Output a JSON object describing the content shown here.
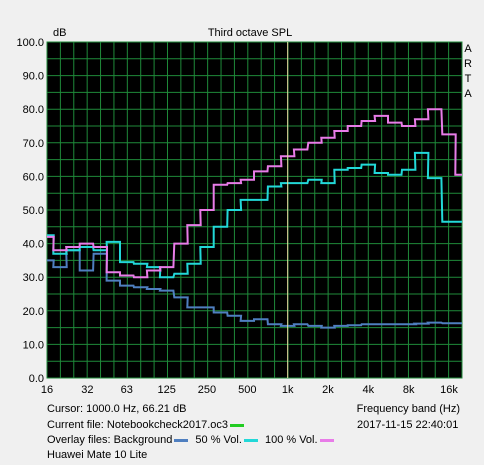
{
  "chart_data": {
    "type": "line",
    "title": "Third octave SPL",
    "ylabel": "dB",
    "xlabel": "Frequency band (Hz)",
    "side_label": [
      "A",
      "R",
      "T",
      "A"
    ],
    "x_scale": "log",
    "xlim": [
      16,
      20000
    ],
    "ylim": [
      0,
      100
    ],
    "y_ticks": [
      "0.0",
      "10.0",
      "20.0",
      "30.0",
      "40.0",
      "50.0",
      "60.0",
      "70.0",
      "80.0",
      "90.0",
      "100.0"
    ],
    "x_ticks": [
      {
        "value": 16,
        "label": "16"
      },
      {
        "value": 32,
        "label": "32"
      },
      {
        "value": 63,
        "label": "63"
      },
      {
        "value": 125,
        "label": "125"
      },
      {
        "value": 250,
        "label": "250"
      },
      {
        "value": 500,
        "label": "500"
      },
      {
        "value": 1000,
        "label": "1k"
      },
      {
        "value": 2000,
        "label": "2k"
      },
      {
        "value": 4000,
        "label": "4k"
      },
      {
        "value": 8000,
        "label": "8k"
      },
      {
        "value": 16000,
        "label": "16k"
      }
    ],
    "cursor_frequency": 1000,
    "grid": true,
    "band_centers": [
      16,
      20,
      25,
      31.5,
      40,
      50,
      63,
      80,
      100,
      125,
      160,
      200,
      250,
      315,
      400,
      500,
      630,
      800,
      1000,
      1250,
      1600,
      2000,
      2500,
      3150,
      4000,
      5000,
      6300,
      8000,
      10000,
      12500,
      16000,
      20000
    ],
    "series": [
      {
        "name": "Background",
        "color": "#4f7fc0",
        "values": [
          35,
          33,
          38,
          32,
          37,
          29,
          27.5,
          27,
          26.5,
          26,
          24,
          21,
          21,
          19.5,
          18.5,
          17,
          17.5,
          16,
          15.5,
          16,
          15.5,
          15,
          15.5,
          15.7,
          16,
          16,
          16,
          16,
          16.2,
          16.5,
          16.3,
          16.3
        ]
      },
      {
        "name": "50 % Vol.",
        "color": "#22d8d8",
        "values": [
          42.5,
          37,
          38,
          39,
          38,
          40.5,
          34.5,
          34,
          33,
          30,
          31,
          34,
          39,
          45,
          50,
          53,
          53,
          57,
          58,
          58,
          59,
          58,
          62,
          62.5,
          63.5,
          61,
          60.5,
          62,
          67,
          59.5,
          46.5,
          46.5
        ]
      },
      {
        "name": "100 % Vol.",
        "color": "#e87ce8",
        "values": [
          42,
          38,
          39,
          40,
          39,
          31.5,
          30.5,
          30,
          32,
          33,
          40,
          45.5,
          50,
          57.5,
          58,
          59,
          61.5,
          63,
          66,
          68,
          70,
          71.5,
          73.5,
          75,
          76.5,
          78,
          76,
          75,
          77,
          80,
          72.5,
          60.5
        ]
      }
    ]
  },
  "footer": {
    "cursor": "Cursor:  1000.0 Hz, 66.21 dB",
    "current_file_label": "Current file: Notebookcheck2017.oc3",
    "current_file_color": "#22cc22",
    "overlay_label": "Overlay files: Background",
    "overlay_50": "50 % Vol.",
    "overlay_100": "100 % Vol.",
    "timestamp": "2017-11-15  22:40:01",
    "device": "Huawei Mate 10 Lite"
  }
}
